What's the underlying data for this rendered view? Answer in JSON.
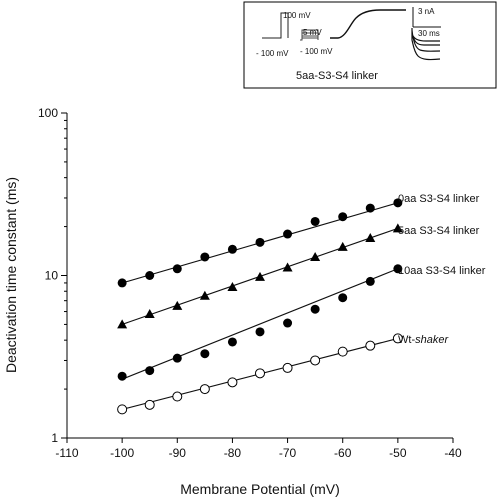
{
  "chart_data": {
    "type": "scatter",
    "xlabel": "Membrane Potential (mV)",
    "ylabel": "Deactivation time constant (ms)",
    "xlim": [
      -110,
      -40
    ],
    "ylim": [
      1,
      100
    ],
    "yscale": "log",
    "grid": false,
    "legend": "inline labels at right end of each series",
    "x_ticks": [
      "-110",
      "-100",
      "-90",
      "-80",
      "-70",
      "-60",
      "-50",
      "-40"
    ],
    "y_ticks": [
      "1",
      "10",
      "100"
    ],
    "x": [
      -100,
      -95,
      -90,
      -85,
      -80,
      -75,
      -70,
      -65,
      -60,
      -55,
      -50
    ],
    "series": [
      {
        "name": "0aa S3-S4 linker",
        "marker": "filled-circle",
        "values": [
          9.0,
          10.0,
          11.0,
          13.0,
          14.5,
          16.0,
          18.0,
          21.5,
          23.0,
          26.0,
          28.0
        ],
        "fit": [
          9.0,
          28.0
        ]
      },
      {
        "name": "5aa S3-S4 linker",
        "marker": "filled-triangle",
        "values": [
          5.0,
          5.8,
          6.5,
          7.5,
          8.5,
          9.8,
          11.2,
          13.0,
          15.0,
          17.0,
          19.5
        ],
        "fit": [
          5.0,
          19.5
        ]
      },
      {
        "name": "10aa S3-S4 linker",
        "marker": "filled-circle",
        "values": [
          2.4,
          2.6,
          3.1,
          3.3,
          3.9,
          4.5,
          5.1,
          6.2,
          7.3,
          9.2,
          11.0
        ],
        "fit": [
          2.3,
          11.0
        ]
      },
      {
        "name": "Wt-shaker",
        "marker": "open-circle",
        "values": [
          1.5,
          1.6,
          1.8,
          2.0,
          2.2,
          2.5,
          2.7,
          3.0,
          3.4,
          3.7,
          4.1
        ],
        "fit": [
          1.5,
          4.1
        ]
      }
    ]
  },
  "inset": {
    "title": "5aa-S3-S4 linker",
    "protocol_labels": [
      "100 mV",
      "- 100 mV",
      "5 mV",
      "- 100 mV"
    ],
    "scale_current": "3 nA",
    "scale_time": "30 ms"
  }
}
